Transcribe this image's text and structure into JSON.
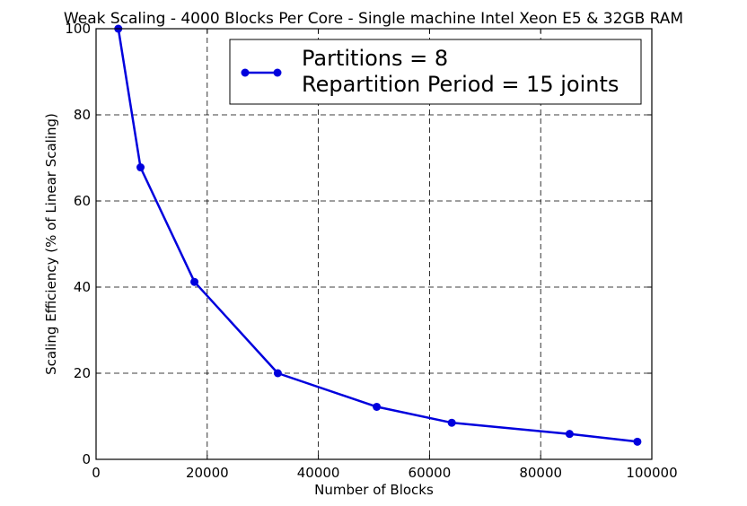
{
  "chart_data": {
    "type": "line",
    "title": "Weak Scaling - 4000 Blocks Per Core - Single machine Intel Xeon E5 & 32GB RAM",
    "xlabel": "Number of Blocks",
    "ylabel": "Scaling Efficiency (% of Linear Scaling)",
    "xlim": [
      0,
      100000
    ],
    "ylim": [
      0,
      100
    ],
    "xticks": [
      0,
      20000,
      40000,
      60000,
      80000,
      100000
    ],
    "yticks": [
      0,
      20,
      40,
      60,
      80,
      100
    ],
    "grid": true,
    "legend_position": "top-right",
    "legend_lines": [
      "Partitions = 8",
      "Repartition Period = 15 joints"
    ],
    "series": [
      {
        "color": "#0000dd",
        "x": [
          4000,
          8000,
          17700,
          32700,
          50500,
          64000,
          85200,
          97400
        ],
        "y": [
          100,
          67.8,
          41.2,
          20.0,
          12.2,
          8.5,
          5.9,
          4.1
        ]
      }
    ]
  }
}
